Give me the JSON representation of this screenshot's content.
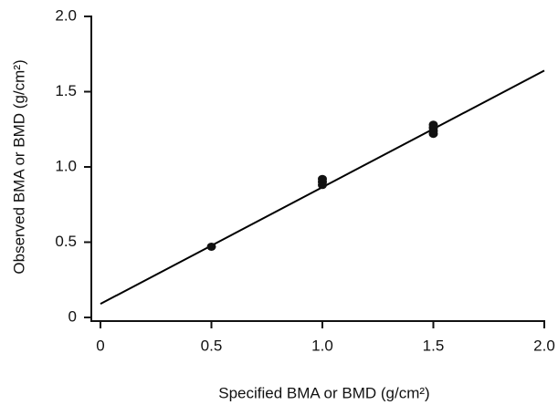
{
  "chart_data": {
    "type": "scatter",
    "x_label": "Specified BMA or BMD (g/cm²)",
    "y_label": "Observed BMA or BMD (g/cm²)",
    "xlim": [
      0,
      2
    ],
    "ylim": [
      0,
      2
    ],
    "xticks": [
      0,
      0.5,
      {
        "value": 1,
        "label": "1.0"
      },
      1.5,
      {
        "value": 2,
        "label": "2.0"
      }
    ],
    "yticks": [
      0,
      0.5,
      {
        "value": 1,
        "label": "1.0"
      },
      1.5,
      {
        "value": 2,
        "label": "2.0"
      }
    ],
    "series": [
      {
        "color": "#111111",
        "x": [
          0.5,
          1.0,
          1.0,
          1.0,
          1.5,
          1.5,
          1.5,
          1.5
        ],
        "values": [
          0.47,
          0.88,
          0.9,
          0.92,
          1.22,
          1.24,
          1.26,
          1.28
        ]
      }
    ],
    "fit_line": {
      "color": "#000000",
      "x": [
        0,
        2
      ],
      "values": [
        0.09,
        1.64
      ]
    }
  }
}
